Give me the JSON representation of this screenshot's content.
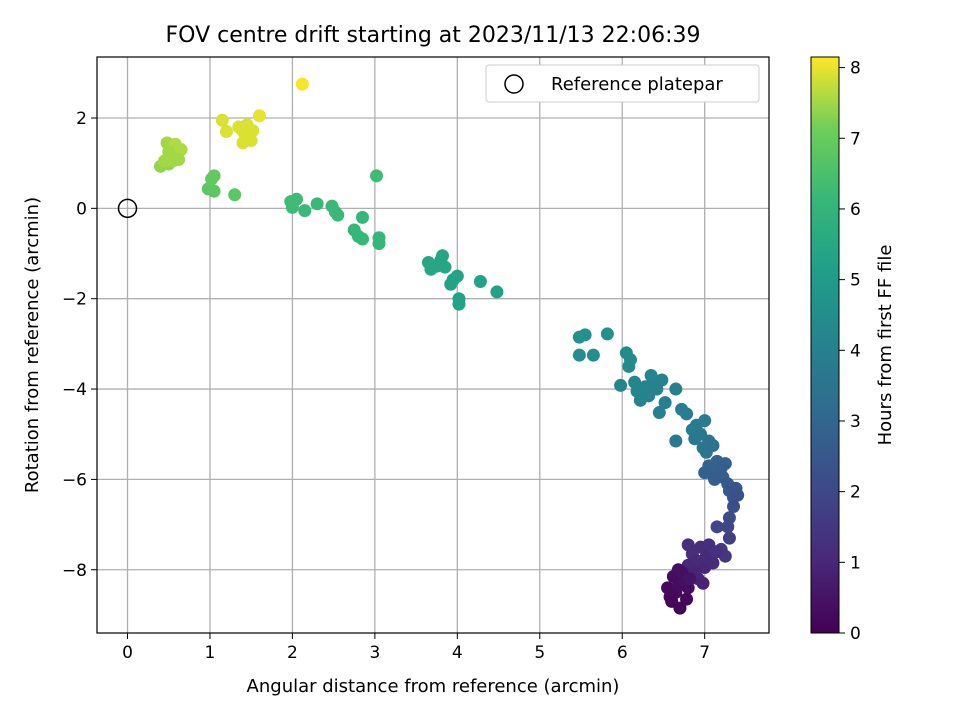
{
  "chart_data": {
    "type": "scatter",
    "title": "FOV centre drift starting at 2023/11/13 22:06:39",
    "xlabel": "Angular distance from reference (arcmin)",
    "ylabel": "Rotation from reference (arcmin)",
    "xlim": [
      -0.37,
      7.78
    ],
    "ylim": [
      -9.4,
      3.35
    ],
    "xticks": [
      "0",
      "1",
      "2",
      "3",
      "4",
      "5",
      "6",
      "7"
    ],
    "yticks": [
      "−8",
      "−6",
      "−4",
      "−2",
      "0",
      "2"
    ],
    "grid": true,
    "colormap": "viridis",
    "colorbar": {
      "label": "Hours from first FF file",
      "range": [
        0,
        8.15
      ],
      "ticks": [
        "0",
        "1",
        "2",
        "3",
        "4",
        "5",
        "6",
        "7",
        "8"
      ]
    },
    "legend": {
      "position": "top-right",
      "entries": [
        "Reference platepar"
      ]
    },
    "reference": {
      "x": 0,
      "y": 0
    },
    "points": [
      [
        0.4,
        0.93,
        7.4
      ],
      [
        0.5,
        0.98,
        7.4
      ],
      [
        0.45,
        1.05,
        7.5
      ],
      [
        0.55,
        1.15,
        7.5
      ],
      [
        0.6,
        1.2,
        7.5
      ],
      [
        0.52,
        1.3,
        7.6
      ],
      [
        0.65,
        1.3,
        7.6
      ],
      [
        0.48,
        1.45,
        7.5
      ],
      [
        0.58,
        1.42,
        7.6
      ],
      [
        0.62,
        1.08,
        7.5
      ],
      [
        0.55,
        1.05,
        7.5
      ],
      [
        0.5,
        1.25,
        7.5
      ],
      [
        1.15,
        1.95,
        7.9
      ],
      [
        1.2,
        1.7,
        7.9
      ],
      [
        1.35,
        1.8,
        7.9
      ],
      [
        1.4,
        1.45,
        7.9
      ],
      [
        1.45,
        1.85,
        7.9
      ],
      [
        1.5,
        1.5,
        7.9
      ],
      [
        1.52,
        1.72,
        7.9
      ],
      [
        1.6,
        2.05,
        8.0
      ],
      [
        1.42,
        1.65,
        7.9
      ],
      [
        1.38,
        1.75,
        7.9
      ],
      [
        2.12,
        2.75,
        8.1
      ],
      [
        0.98,
        0.43,
        6.8
      ],
      [
        1.05,
        0.38,
        6.8
      ],
      [
        1.02,
        0.65,
        6.9
      ],
      [
        1.05,
        0.72,
        6.9
      ],
      [
        1.3,
        0.3,
        6.8
      ],
      [
        1.98,
        0.15,
        6.3
      ],
      [
        2.0,
        0.02,
        6.3
      ],
      [
        2.05,
        0.2,
        6.3
      ],
      [
        2.15,
        -0.05,
        6.2
      ],
      [
        2.3,
        0.1,
        6.2
      ],
      [
        2.48,
        0.05,
        6.2
      ],
      [
        2.52,
        -0.08,
        6.2
      ],
      [
        2.55,
        -0.15,
        6.2
      ],
      [
        2.75,
        -0.48,
        6.1
      ],
      [
        2.8,
        -0.62,
        6.1
      ],
      [
        2.85,
        -0.68,
        6.1
      ],
      [
        2.85,
        -0.2,
        6.1
      ],
      [
        3.02,
        0.72,
        6.3
      ],
      [
        3.05,
        -0.65,
        6.1
      ],
      [
        3.05,
        -0.78,
        6.1
      ],
      [
        3.65,
        -1.2,
        5.4
      ],
      [
        3.68,
        -1.35,
        5.4
      ],
      [
        3.75,
        -1.28,
        5.4
      ],
      [
        3.8,
        -1.15,
        5.4
      ],
      [
        3.82,
        -1.05,
        5.4
      ],
      [
        3.85,
        -1.3,
        5.4
      ],
      [
        3.92,
        -1.68,
        5.3
      ],
      [
        3.95,
        -1.58,
        5.3
      ],
      [
        4.0,
        -1.5,
        5.3
      ],
      [
        4.02,
        -2.0,
        5.3
      ],
      [
        4.02,
        -2.12,
        5.3
      ],
      [
        4.28,
        -1.62,
        5.3
      ],
      [
        4.48,
        -1.85,
        5.2
      ],
      [
        5.48,
        -2.85,
        4.6
      ],
      [
        5.48,
        -3.25,
        4.5
      ],
      [
        5.55,
        -2.8,
        4.6
      ],
      [
        5.65,
        -3.25,
        4.5
      ],
      [
        5.82,
        -2.78,
        4.6
      ],
      [
        5.98,
        -3.92,
        4.2
      ],
      [
        6.05,
        -3.2,
        4.4
      ],
      [
        6.08,
        -3.5,
        4.4
      ],
      [
        6.1,
        -3.35,
        4.4
      ],
      [
        6.15,
        -3.85,
        4.2
      ],
      [
        6.18,
        -4.05,
        4.2
      ],
      [
        6.22,
        -4.25,
        4.1
      ],
      [
        6.28,
        -3.95,
        4.2
      ],
      [
        6.32,
        -4.15,
        4.1
      ],
      [
        6.35,
        -3.7,
        4.2
      ],
      [
        6.38,
        -3.9,
        4.1
      ],
      [
        6.42,
        -4.0,
        4.1
      ],
      [
        6.45,
        -4.52,
        4.0
      ],
      [
        6.48,
        -3.8,
        4.1
      ],
      [
        6.52,
        -4.3,
        4.0
      ],
      [
        6.65,
        -4.0,
        4.0
      ],
      [
        6.65,
        -5.15,
        3.7
      ],
      [
        6.72,
        -4.45,
        3.9
      ],
      [
        6.78,
        -4.55,
        3.9
      ],
      [
        6.85,
        -4.9,
        3.8
      ],
      [
        6.88,
        -5.1,
        3.7
      ],
      [
        6.9,
        -4.8,
        3.8
      ],
      [
        6.95,
        -5.0,
        3.7
      ],
      [
        6.98,
        -5.3,
        3.6
      ],
      [
        7.0,
        -4.7,
        3.8
      ],
      [
        7.02,
        -5.4,
        3.6
      ],
      [
        7.05,
        -5.15,
        3.6
      ],
      [
        7.1,
        -5.25,
        3.5
      ],
      [
        7.0,
        -5.85,
        2.8
      ],
      [
        7.05,
        -5.7,
        2.9
      ],
      [
        7.1,
        -5.9,
        2.8
      ],
      [
        7.12,
        -6.0,
        2.7
      ],
      [
        7.15,
        -5.6,
        2.9
      ],
      [
        7.2,
        -5.75,
        2.8
      ],
      [
        7.22,
        -5.95,
        2.7
      ],
      [
        7.25,
        -5.65,
        2.8
      ],
      [
        7.28,
        -6.1,
        2.6
      ],
      [
        7.3,
        -6.25,
        2.5
      ],
      [
        7.35,
        -6.4,
        2.4
      ],
      [
        7.38,
        -6.2,
        2.4
      ],
      [
        7.4,
        -6.35,
        2.3
      ],
      [
        7.35,
        -6.6,
        2.2
      ],
      [
        7.3,
        -6.85,
        2.1
      ],
      [
        7.28,
        -7.05,
        2.0
      ],
      [
        7.15,
        -7.05,
        1.9
      ],
      [
        7.3,
        -7.3,
        1.8
      ],
      [
        7.2,
        -7.55,
        1.6
      ],
      [
        7.25,
        -7.7,
        1.5
      ],
      [
        6.8,
        -7.45,
        1.2
      ],
      [
        6.85,
        -7.65,
        1.2
      ],
      [
        6.9,
        -7.8,
        1.1
      ],
      [
        6.95,
        -7.5,
        1.2
      ],
      [
        7.0,
        -7.95,
        1.0
      ],
      [
        7.02,
        -7.7,
        1.1
      ],
      [
        7.05,
        -7.45,
        1.2
      ],
      [
        7.1,
        -7.85,
        1.1
      ],
      [
        7.15,
        -7.6,
        1.3
      ],
      [
        6.98,
        -8.3,
        0.9
      ],
      [
        6.92,
        -8.2,
        0.9
      ],
      [
        6.88,
        -8.05,
        1.0
      ],
      [
        6.8,
        -7.9,
        1.0
      ],
      [
        6.75,
        -8.05,
        0.9
      ],
      [
        6.55,
        -8.4,
        0.2
      ],
      [
        6.58,
        -8.6,
        0.2
      ],
      [
        6.6,
        -8.7,
        0.1
      ],
      [
        6.62,
        -8.15,
        0.3
      ],
      [
        6.65,
        -8.5,
        0.2
      ],
      [
        6.68,
        -8.35,
        0.3
      ],
      [
        6.7,
        -8.85,
        0.1
      ],
      [
        6.72,
        -8.05,
        0.4
      ],
      [
        6.75,
        -8.25,
        0.4
      ],
      [
        6.78,
        -8.65,
        0.2
      ],
      [
        6.8,
        -8.4,
        0.3
      ],
      [
        6.82,
        -8.2,
        0.5
      ],
      [
        6.68,
        -8.0,
        0.4
      ]
    ]
  }
}
